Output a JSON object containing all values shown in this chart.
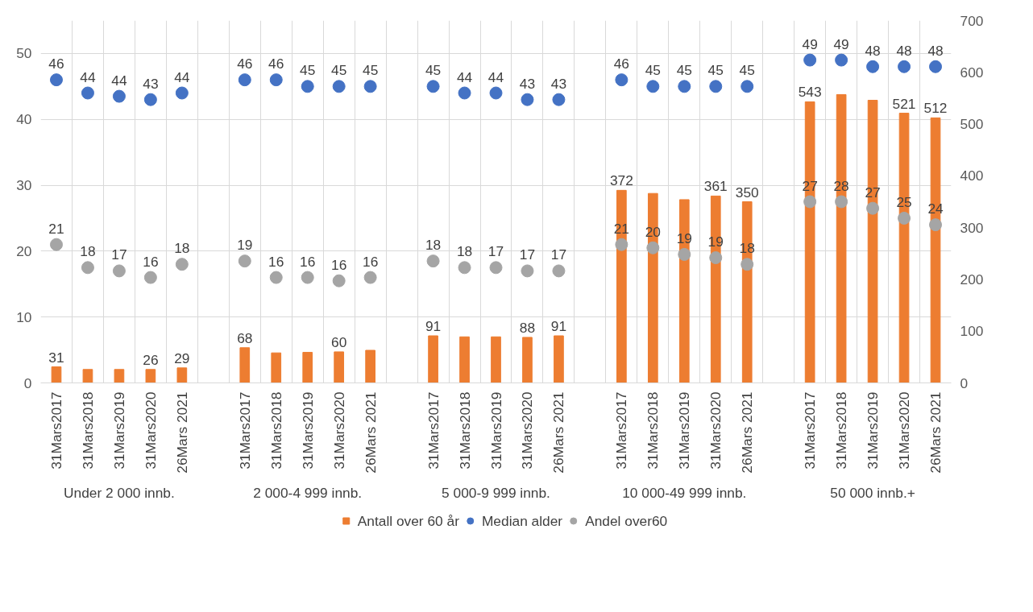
{
  "chart_data": {
    "type": "bar",
    "categories": [
      "31Mars2017",
      "31Mars2018",
      "31Mars2019",
      "31Mars2020",
      "26Mars 2021",
      null,
      "31Mars2017",
      "31Mars2018",
      "31Mars2019",
      "31Mars2020",
      "26Mars 2021",
      null,
      "31Mars2017",
      "31Mars2018",
      "31Mars2019",
      "31Mars2020",
      "26Mars 2021",
      null,
      "31Mars2017",
      "31Mars2018",
      "31Mars2019",
      "31Mars2020",
      "26Mars 2021",
      null,
      "31Mars2017",
      "31Mars2018",
      "31Mars2019",
      "31Mars2020",
      "26Mars 2021"
    ],
    "series": [
      {
        "name": "Antall over 60 år",
        "axis": "y2",
        "color": "#ed7d31",
        "values": [
          31,
          26,
          26,
          26,
          29,
          null,
          68,
          58,
          59,
          60,
          63,
          null,
          91,
          89,
          89,
          88,
          91,
          null,
          372,
          366,
          354,
          361,
          350,
          null,
          543,
          557,
          546,
          521,
          512
        ],
        "value_labels": [
          "31",
          null,
          null,
          "26",
          "29",
          null,
          "68",
          null,
          null,
          "60",
          null,
          null,
          "91",
          null,
          null,
          "88",
          "91",
          null,
          "372",
          null,
          null,
          "361",
          "350",
          null,
          "543",
          null,
          null,
          "521",
          "512"
        ]
      },
      {
        "name": "Median alder",
        "type": "scatter",
        "color": "#4472c4",
        "values": [
          46,
          44,
          43.5,
          43,
          44,
          null,
          46,
          46,
          45,
          45,
          45,
          null,
          45,
          44,
          44,
          43,
          43,
          null,
          46,
          45,
          45,
          45,
          45,
          null,
          49,
          49,
          48,
          48,
          48
        ],
        "value_labels": [
          "46",
          "44",
          "44",
          "43",
          "44",
          null,
          "46",
          "46",
          "45",
          "45",
          "45",
          null,
          "45",
          "44",
          "44",
          "43",
          "43",
          null,
          "46",
          "45",
          "45",
          "45",
          "45",
          null,
          "49",
          "49",
          "48",
          "48",
          "48"
        ]
      },
      {
        "name": "Andel over60",
        "type": "scatter",
        "color": "#a5a5a5",
        "values": [
          21,
          17.5,
          17,
          16,
          18,
          null,
          18.5,
          16,
          16,
          15.5,
          16,
          null,
          18.5,
          17.5,
          17.5,
          17,
          17,
          null,
          21,
          20.5,
          19.5,
          19,
          18,
          null,
          27.5,
          27.5,
          26.5,
          25,
          24
        ],
        "value_labels": [
          "21",
          "18",
          "17",
          "16",
          "18",
          null,
          "19",
          "16",
          "16",
          "16",
          "16",
          null,
          "18",
          "18",
          "17",
          "17",
          "17",
          null,
          "21",
          "20",
          "19",
          "19",
          "18",
          null,
          "27",
          "28",
          "27",
          "25",
          "24"
        ]
      }
    ],
    "annotations": [
      "Under 2 000 innb.",
      "2 000-4 999 innb.",
      "5 000-9 999 innb.",
      "10 000-49 999 innb.",
      "50 000 innb.+"
    ],
    "ylim": [
      0,
      55
    ],
    "yticks": [
      0,
      10,
      20,
      30,
      40,
      50
    ],
    "y2lim": [
      0,
      700
    ],
    "y2ticks": [
      0,
      100,
      200,
      300,
      400,
      500,
      600,
      700
    ],
    "grid": true,
    "legend": "bottom",
    "marker": "circle"
  }
}
